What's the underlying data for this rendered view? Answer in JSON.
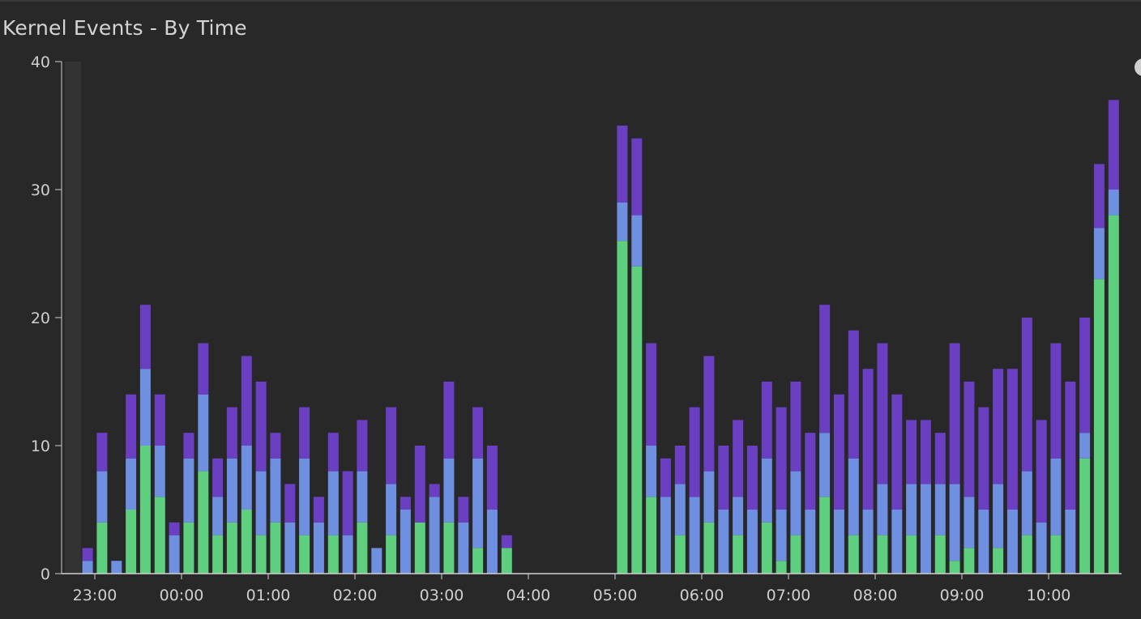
{
  "panel": {
    "title": "Kernel Events - By Time"
  },
  "chart_data": {
    "type": "bar",
    "stacked": true,
    "title": "Kernel Events - By Time",
    "xlabel": "",
    "ylabel": "",
    "ylim": [
      0,
      40
    ],
    "y_ticks": [
      "0",
      "10",
      "20",
      "30",
      "40"
    ],
    "x_ticks": [
      "23:00",
      "00:00",
      "01:00",
      "02:00",
      "03:00",
      "04:00",
      "05:00",
      "06:00",
      "07:00",
      "08:00",
      "09:00",
      "10:00"
    ],
    "grid": false,
    "legend": "none",
    "bin_minutes": 10,
    "categories": [
      "22:50",
      "23:00",
      "23:10",
      "23:20",
      "23:30",
      "23:40",
      "23:50",
      "00:00",
      "00:10",
      "00:20",
      "00:30",
      "00:40",
      "00:50",
      "01:00",
      "01:10",
      "01:20",
      "01:30",
      "01:40",
      "01:50",
      "02:00",
      "02:10",
      "02:20",
      "02:30",
      "02:40",
      "02:50",
      "03:00",
      "03:10",
      "03:20",
      "03:30",
      "03:40",
      "03:50",
      "04:00",
      "04:10",
      "04:20",
      "04:30",
      "04:40",
      "04:50",
      "05:00",
      "05:10",
      "05:20",
      "05:30",
      "05:40",
      "05:50",
      "06:00",
      "06:10",
      "06:20",
      "06:30",
      "06:40",
      "06:50",
      "07:00",
      "07:10",
      "07:20",
      "07:30",
      "07:40",
      "07:50",
      "08:00",
      "08:10",
      "08:20",
      "08:30",
      "08:40",
      "08:50",
      "09:00",
      "09:10",
      "09:20",
      "09:30",
      "09:40",
      "09:50",
      "10:00",
      "10:10",
      "10:20",
      "10:30",
      "10:40",
      "10:50"
    ],
    "series": [
      {
        "color": "#5ecf7e",
        "values": [
          0,
          4,
          0,
          5,
          10,
          6,
          0,
          4,
          8,
          3,
          4,
          5,
          3,
          4,
          0,
          3,
          0,
          3,
          0,
          4,
          0,
          3,
          0,
          4,
          0,
          4,
          0,
          2,
          0,
          2,
          0,
          0,
          0,
          0,
          0,
          0,
          0,
          26,
          24,
          6,
          0,
          3,
          0,
          4,
          0,
          3,
          0,
          4,
          1,
          3,
          0,
          6,
          0,
          3,
          0,
          3,
          0,
          3,
          0,
          3,
          1,
          2,
          0,
          2,
          0,
          3,
          0,
          3,
          0,
          9,
          23,
          28,
          0
        ]
      },
      {
        "color": "#6f8fe0",
        "values": [
          1,
          4,
          1,
          4,
          6,
          4,
          3,
          5,
          6,
          3,
          5,
          5,
          5,
          5,
          4,
          6,
          4,
          5,
          3,
          4,
          2,
          4,
          5,
          0,
          6,
          5,
          4,
          7,
          5,
          0,
          0,
          0,
          0,
          0,
          0,
          0,
          0,
          3,
          4,
          4,
          6,
          4,
          6,
          4,
          5,
          3,
          5,
          5,
          4,
          5,
          5,
          5,
          5,
          6,
          5,
          4,
          5,
          4,
          7,
          4,
          6,
          4,
          5,
          5,
          5,
          5,
          4,
          6,
          5,
          2,
          4,
          2,
          0
        ]
      },
      {
        "color": "#6a3fc2",
        "values": [
          1,
          3,
          0,
          5,
          5,
          4,
          1,
          2,
          4,
          3,
          4,
          7,
          7,
          2,
          3,
          4,
          2,
          3,
          5,
          4,
          0,
          6,
          1,
          6,
          1,
          6,
          2,
          4,
          5,
          1,
          0,
          0,
          0,
          0,
          0,
          0,
          0,
          6,
          6,
          8,
          3,
          3,
          7,
          9,
          5,
          6,
          5,
          6,
          8,
          7,
          6,
          10,
          9,
          10,
          11,
          11,
          9,
          5,
          5,
          4,
          11,
          9,
          8,
          9,
          11,
          12,
          8,
          9,
          10,
          9,
          5,
          7,
          0
        ]
      }
    ]
  }
}
